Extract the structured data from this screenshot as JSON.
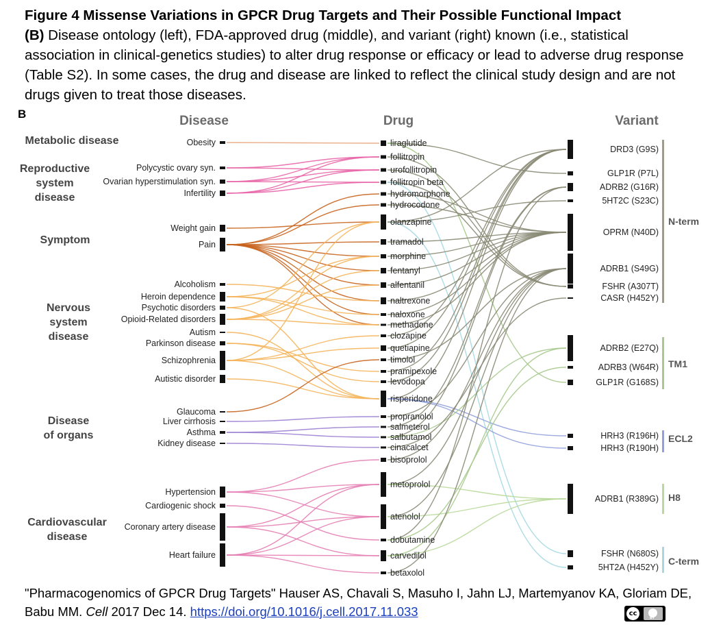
{
  "caption": {
    "title": "Figure 4  Missense Variations in GPCR Drug Targets and Their Possible Functional Impact",
    "lead": "(B)",
    "body": "Disease ontology (left), FDA-approved drug (middle), and variant (right) known (i.e., statistical association in clinical-genetics studies) to alter drug response or efficacy or lead to adverse drug response (Table S2). In some cases, the drug and disease are linked to reflect the clinical study design and are not drugs given to treat those diseases."
  },
  "panel_label": "B",
  "headers": {
    "disease": "Disease",
    "drug": "Drug",
    "variant": "Variant"
  },
  "categories": [
    {
      "lines": [
        "Metabolic disease"
      ]
    },
    {
      "lines": [
        "Reproductive",
        "system",
        "disease"
      ]
    },
    {
      "lines": [
        "Symptom"
      ]
    },
    {
      "lines": [
        "Nervous",
        "system",
        "disease"
      ]
    },
    {
      "lines": [
        "Disease",
        "of organs"
      ]
    },
    {
      "lines": [
        "Cardiovascular",
        "disease"
      ]
    }
  ],
  "diseases": [
    "Obesity",
    "Polycystic ovary syn.",
    "Ovarian hyperstimulation syn.",
    "Infertility",
    "Weight gain",
    "Pain",
    "Alcoholism",
    "Heroin dependence",
    "Psychotic disorders",
    "Opioid-Related disorders",
    "Autism",
    "Parkinson disease",
    "Schizophrenia",
    "Autistic disorder",
    "Glaucoma",
    "Liver cirrhosis",
    "Asthma",
    "Kidney disease",
    "Hypertension",
    "Cardiogenic shock",
    "Coronary artery disease",
    "Heart failure"
  ],
  "drugs": [
    "liraglutide",
    "follitropin",
    "urofollitropin",
    "follitropin beta",
    "hydromorphone",
    "hydrocodone",
    "olanzapine",
    "tramadol",
    "morphine",
    "fentanyl",
    "alfentanil",
    "naltrexone",
    "naloxone",
    "methadone",
    "clozapine",
    "quetiapine",
    "timolol",
    "pramipexole",
    "levodopa",
    "risperidone",
    "propranolol",
    "salmeterol",
    "salbutamol",
    "cinacalcet",
    "bisoprolol",
    "metoprolol",
    "atenolol",
    "dobutamine",
    "carvedilol",
    "betaxolol"
  ],
  "variants": [
    "DRD3 (G9S)",
    "GLP1R (P7L)",
    "ADRB2 (G16R)",
    "5HT2C (S23C)",
    "OPRM (N40D)",
    "ADRB1 (S49G)",
    "FSHR (A307T)",
    "CASR (H452Y)",
    "ADRB2 (E27Q)",
    "ADRB3 (W64R)",
    "GLP1R (G168S)",
    "HRH3 (R196H)",
    "HRH3 (R190H)",
    "ADRB1 (R389G)",
    "FSHR (N680S)",
    "5HT2A (H452Y)"
  ],
  "regions": [
    "N-term",
    "TM1",
    "ECL2",
    "H8",
    "C-term"
  ],
  "colors": {
    "metabolic": "#e8a47a",
    "reproductive": "#e866a8",
    "symptom": "#c8641e",
    "nervous": "#f5b45a",
    "organs": "#9a7fd1",
    "cardio": "#e67eb4",
    "variant_link": "#8a8a76",
    "tm1": "#a7c98d",
    "h8": "#b9d99a",
    "ecl2": "#8fa0dd",
    "cterm": "#a4d8e2",
    "nterm_bar": "#9e9c86",
    "tm1_bar": "#a7c98d",
    "ecl2_bar": "#8fa0dd",
    "h8_bar": "#b9d99a",
    "cterm_bar": "#a4d8e2"
  },
  "footer": {
    "citation": "\"Pharmacogenomics of GPCR Drug Targets\" Hauser AS, Chavali S, Masuho I, Jahn LJ, Martemyanov KA, Gloriam DE, Babu MM.",
    "journal": "Cell",
    "date": "2017 Dec 14.",
    "doi": "https://doi.org/10.1016/j.cell.2017.11.033",
    "license": "cc BY"
  }
}
